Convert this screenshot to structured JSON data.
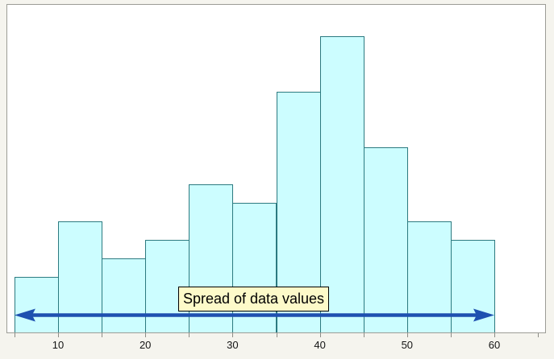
{
  "chart_data": {
    "type": "bar",
    "subtype": "histogram",
    "title": "",
    "xlabel": "",
    "ylabel": "",
    "bin_edges": [
      5,
      10,
      15,
      20,
      25,
      30,
      35,
      40,
      45,
      50,
      55,
      60
    ],
    "counts": [
      3,
      6,
      4,
      5,
      8,
      7,
      13,
      16,
      10,
      6,
      5
    ],
    "x_ticks": [
      {
        "value": 5,
        "label": ""
      },
      {
        "value": 10,
        "label": "10"
      },
      {
        "value": 15,
        "label": ""
      },
      {
        "value": 20,
        "label": "20"
      },
      {
        "value": 25,
        "label": ""
      },
      {
        "value": 30,
        "label": "30"
      },
      {
        "value": 35,
        "label": ""
      },
      {
        "value": 40,
        "label": "40"
      },
      {
        "value": 45,
        "label": ""
      },
      {
        "value": 50,
        "label": "50"
      },
      {
        "value": 55,
        "label": ""
      },
      {
        "value": 60,
        "label": "60"
      },
      {
        "value": 65,
        "label": ""
      }
    ],
    "xlim": [
      4,
      66.6
    ],
    "ylim": [
      0,
      17.7
    ],
    "grid": false,
    "y_axis_shown": false,
    "annotation": {
      "label": "Spread of data values",
      "arrow_from_value": 5,
      "arrow_to_value": 60,
      "arrow_style": "double-headed"
    },
    "colors": {
      "bar_fill": "#ccfdff",
      "bar_stroke": "#2c7a80",
      "frame_border": "#9c9c96",
      "plot_background": "#ffffff",
      "page_background": "#f5f4ee",
      "arrow": "#1e50b0",
      "label_background": "#fdfac9",
      "label_border": "#000000",
      "tick_mark": "#8c8c86",
      "tick_text": "#141414"
    }
  }
}
